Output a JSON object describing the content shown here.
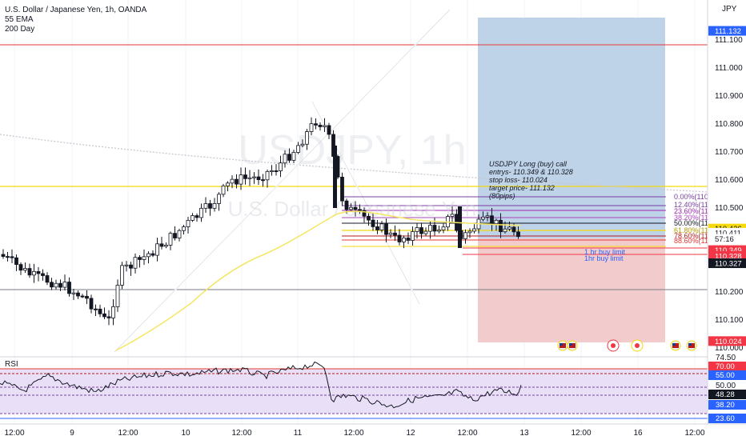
{
  "header": {
    "symbol_line": "U.S. Dollar / Japanese Yen, 1h, OANDA",
    "indicator_1": "55 EMA",
    "indicator_2": "200 Day",
    "currency": "JPY",
    "rsi_label": "RSI"
  },
  "watermark": {
    "symbol": "USDJPY, 1h",
    "name": "U.S. Dollar / Japanese Yen"
  },
  "annotation": {
    "lines": [
      "USDJPY Long (buy) call",
      "entrys- 110.349 & 110.328",
      "stop loss- 110.024",
      "target price- 111.132",
      "(80pips)"
    ]
  },
  "order_labels": [
    "1 hr buy limit",
    "1hr buy limit"
  ],
  "fib_labels": [
    "0.00%(110.",
    "12.40%(110",
    "23.60%(110",
    "38.20%(110",
    "50.00%(110",
    "61.80%(110",
    "78.60%(110",
    "88.60%(110"
  ],
  "chart_data": [
    {
      "type": "candlestick",
      "title": "U.S. Dollar / Japanese Yen, 1h, OANDA",
      "y_axis_ticks": [
        111.1,
        111.0,
        110.9,
        110.8,
        110.7,
        110.6,
        110.5,
        110.4,
        110.3,
        110.2,
        110.1,
        110.0
      ],
      "y_axis_tick_labels": [
        "111.100",
        "111.000",
        "110.900",
        "110.800",
        "110.700",
        "110.600",
        "110.500",
        "110.400",
        "110.300",
        "110.200",
        "110.100",
        "110.000"
      ],
      "ylim": [
        109.985,
        111.185
      ],
      "x_tick_labels": [
        "12:00",
        "9",
        "12:00",
        "10",
        "12:00",
        "11",
        "12:00",
        "12",
        "12:00",
        "13",
        "12:00",
        "16",
        "12:00"
      ],
      "price_badges": [
        {
          "label": "111.132",
          "value": 111.132,
          "color": "#2962ff"
        },
        {
          "label": "110.426",
          "value": 110.426,
          "color": "#f5d90a",
          "text_color": "#131722"
        },
        {
          "label": "110.411",
          "value": 110.411,
          "color": "#ffffff",
          "text_color": "#131722"
        },
        {
          "label": "57:16",
          "value": 110.389,
          "color": "#ffffff",
          "text_color": "#131722"
        },
        {
          "label": "110.349",
          "value": 110.349,
          "color": "#f23645"
        },
        {
          "label": "110.328",
          "value": 110.328,
          "color": "#f23645"
        },
        {
          "label": "110.327",
          "value": 110.302,
          "color": "#131722"
        },
        {
          "label": "110.024",
          "value": 110.024,
          "color": "#f23645"
        }
      ],
      "horizontal_levels": [
        {
          "value": 111.045,
          "color": "#e53935"
        },
        {
          "value": 110.555,
          "color": "#f5d90a"
        },
        {
          "value": 110.205,
          "color": "#787b86"
        }
      ],
      "position": {
        "target": 111.132,
        "entry": 110.349,
        "stop": 110.024
      },
      "series": [
        {
          "name": "55 EMA",
          "color": "#f5e663"
        },
        {
          "name": "200 Day",
          "color": "#c8c8d0"
        }
      ]
    },
    {
      "type": "line",
      "title": "RSI",
      "y_axis_tick_labels": [
        "74.50",
        "70.00",
        "55.00",
        "50.00",
        "48.28",
        "38.20",
        "23.60"
      ],
      "levels": [
        74.5,
        70,
        55,
        50,
        38.2,
        23.6
      ],
      "last_value": 48.28
    }
  ],
  "colors": {
    "up": "#ffffff",
    "down": "#131722",
    "target_zone": "#b7cde6",
    "stop_zone": "#f1c6c8",
    "rsi_band": "#e9e0f7"
  }
}
